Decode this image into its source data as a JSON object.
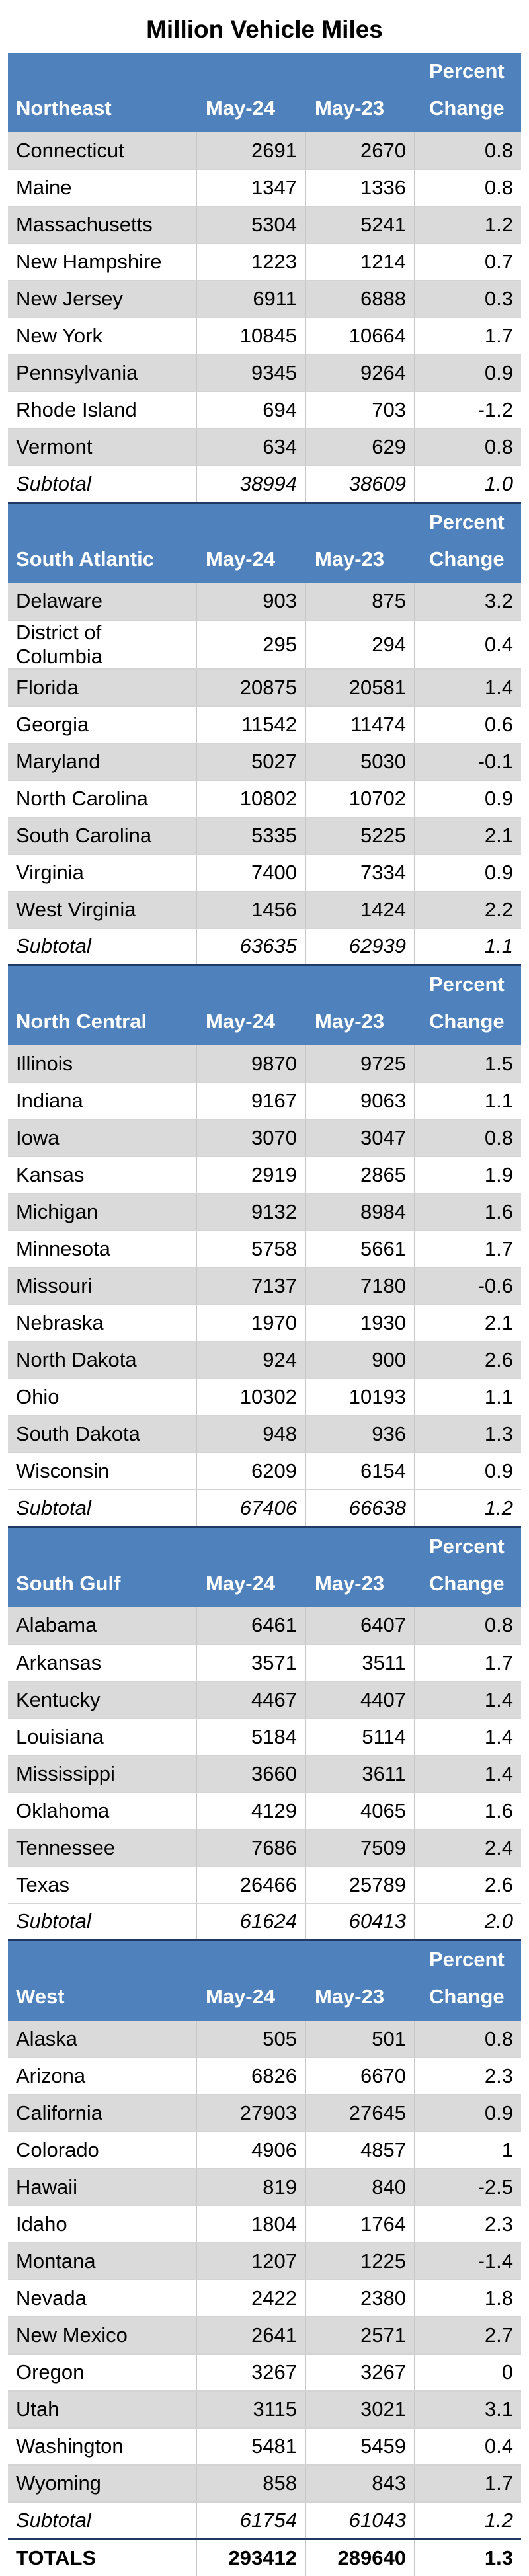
{
  "title": "Million Vehicle Miles",
  "headers": {
    "col1": "May-24",
    "col2": "May-23",
    "col3a": "Percent",
    "col3b": "Change"
  },
  "regions": [
    {
      "name": "Northeast",
      "rows": [
        [
          "Connecticut",
          "2691",
          "2670",
          "0.8"
        ],
        [
          "Maine",
          "1347",
          "1336",
          "0.8"
        ],
        [
          "Massachusetts",
          "5304",
          "5241",
          "1.2"
        ],
        [
          "New Hampshire",
          "1223",
          "1214",
          "0.7"
        ],
        [
          "New Jersey",
          "6911",
          "6888",
          "0.3"
        ],
        [
          "New York",
          "10845",
          "10664",
          "1.7"
        ],
        [
          "Pennsylvania",
          "9345",
          "9264",
          "0.9"
        ],
        [
          "Rhode Island",
          "694",
          "703",
          "-1.2"
        ],
        [
          "Vermont",
          "634",
          "629",
          "0.8"
        ]
      ],
      "subtotal": [
        "Subtotal",
        "38994",
        "38609",
        "1.0"
      ]
    },
    {
      "name": "South Atlantic",
      "rows": [
        [
          "Delaware",
          "903",
          "875",
          "3.2"
        ],
        [
          "District of Columbia",
          "295",
          "294",
          "0.4"
        ],
        [
          "Florida",
          "20875",
          "20581",
          "1.4"
        ],
        [
          "Georgia",
          "11542",
          "11474",
          "0.6"
        ],
        [
          "Maryland",
          "5027",
          "5030",
          "-0.1"
        ],
        [
          "North Carolina",
          "10802",
          "10702",
          "0.9"
        ],
        [
          "South Carolina",
          "5335",
          "5225",
          "2.1"
        ],
        [
          "Virginia",
          "7400",
          "7334",
          "0.9"
        ],
        [
          "West Virginia",
          "1456",
          "1424",
          "2.2"
        ]
      ],
      "subtotal": [
        "Subtotal",
        "63635",
        "62939",
        "1.1"
      ]
    },
    {
      "name": "North Central",
      "rows": [
        [
          "Illinois",
          "9870",
          "9725",
          "1.5"
        ],
        [
          "Indiana",
          "9167",
          "9063",
          "1.1"
        ],
        [
          "Iowa",
          "3070",
          "3047",
          "0.8"
        ],
        [
          "Kansas",
          "2919",
          "2865",
          "1.9"
        ],
        [
          "Michigan",
          "9132",
          "8984",
          "1.6"
        ],
        [
          "Minnesota",
          "5758",
          "5661",
          "1.7"
        ],
        [
          "Missouri",
          "7137",
          "7180",
          "-0.6"
        ],
        [
          "Nebraska",
          "1970",
          "1930",
          "2.1"
        ],
        [
          "North Dakota",
          "924",
          "900",
          "2.6"
        ],
        [
          "Ohio",
          "10302",
          "10193",
          "1.1"
        ],
        [
          "South Dakota",
          "948",
          "936",
          "1.3"
        ],
        [
          "Wisconsin",
          "6209",
          "6154",
          "0.9"
        ]
      ],
      "subtotal": [
        "Subtotal",
        "67406",
        "66638",
        "1.2"
      ]
    },
    {
      "name": "South Gulf",
      "rows": [
        [
          "Alabama",
          "6461",
          "6407",
          "0.8"
        ],
        [
          "Arkansas",
          "3571",
          "3511",
          "1.7"
        ],
        [
          "Kentucky",
          "4467",
          "4407",
          "1.4"
        ],
        [
          "Louisiana",
          "5184",
          "5114",
          "1.4"
        ],
        [
          "Mississippi",
          "3660",
          "3611",
          "1.4"
        ],
        [
          "Oklahoma",
          "4129",
          "4065",
          "1.6"
        ],
        [
          "Tennessee",
          "7686",
          "7509",
          "2.4"
        ],
        [
          "Texas",
          "26466",
          "25789",
          "2.6"
        ]
      ],
      "subtotal": [
        "Subtotal",
        "61624",
        "60413",
        "2.0"
      ]
    },
    {
      "name": "West",
      "rows": [
        [
          "Alaska",
          "505",
          "501",
          "0.8"
        ],
        [
          "Arizona",
          "6826",
          "6670",
          "2.3"
        ],
        [
          "California",
          "27903",
          "27645",
          "0.9"
        ],
        [
          "Colorado",
          "4906",
          "4857",
          "1"
        ],
        [
          "Hawaii",
          "819",
          "840",
          "-2.5"
        ],
        [
          "Idaho",
          "1804",
          "1764",
          "2.3"
        ],
        [
          "Montana",
          "1207",
          "1225",
          "-1.4"
        ],
        [
          "Nevada",
          "2422",
          "2380",
          "1.8"
        ],
        [
          "New Mexico",
          "2641",
          "2571",
          "2.7"
        ],
        [
          "Oregon",
          "3267",
          "3267",
          "0"
        ],
        [
          "Utah",
          "3115",
          "3021",
          "3.1"
        ],
        [
          "Washington",
          "5481",
          "5459",
          "0.4"
        ],
        [
          "Wyoming",
          "858",
          "843",
          "1.7"
        ]
      ],
      "subtotal": [
        "Subtotal",
        "61754",
        "61043",
        "1.2"
      ]
    }
  ],
  "totals": [
    "TOTALS",
    "293412",
    "289640",
    "1.3"
  ]
}
